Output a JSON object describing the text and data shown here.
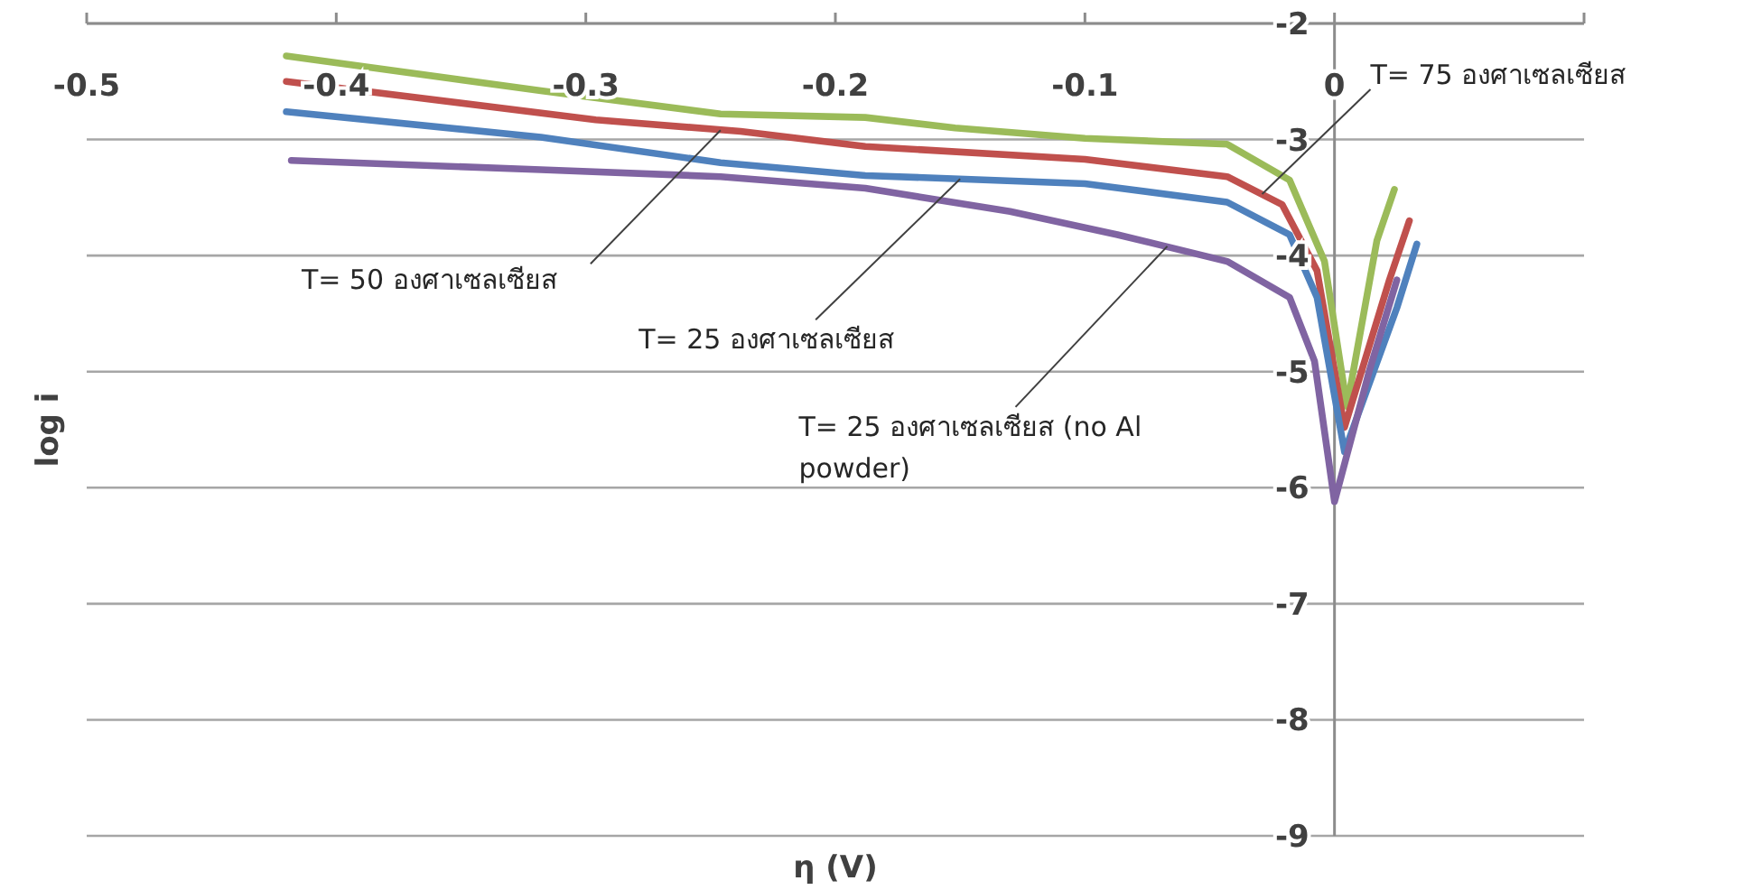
{
  "chart_data": {
    "type": "line",
    "xlabel": "η (V)",
    "ylabel": "log i",
    "xlim": [
      -0.5,
      0.1
    ],
    "xticks": [
      -0.5,
      -0.4,
      -0.3,
      -0.2,
      -0.1,
      0,
      {
        "value": 0.1,
        "label": null
      }
    ],
    "ylim": [
      -9,
      -2
    ],
    "yticks": [
      -9,
      -8,
      -7,
      -6,
      -5,
      -4,
      -3,
      -2
    ],
    "grid": "y",
    "marker": "none",
    "line_style": "solid",
    "series": [
      {
        "color": "#9bbb59",
        "x": [
          -0.42,
          -0.318,
          -0.246,
          -0.188,
          -0.152,
          -0.1,
          -0.043,
          -0.018,
          -0.004,
          0.005,
          0.017,
          0.024
        ],
        "values": [
          -2.28,
          -2.58,
          -2.78,
          -2.81,
          -2.9,
          -2.99,
          -3.04,
          -3.35,
          -4.05,
          -5.3,
          -3.87,
          -3.43
        ]
      },
      {
        "color": "#c0504d",
        "x": [
          -0.42,
          -0.296,
          -0.238,
          -0.188,
          -0.1,
          -0.043,
          -0.021,
          -0.007,
          0.004,
          0.022,
          0.03
        ],
        "values": [
          -2.5,
          -2.83,
          -2.93,
          -3.06,
          -3.17,
          -3.32,
          -3.56,
          -4.13,
          -5.48,
          -4.21,
          -3.7
        ]
      },
      {
        "color": "#4f81bd",
        "x": [
          -0.42,
          -0.318,
          -0.246,
          -0.188,
          -0.1,
          -0.043,
          -0.018,
          -0.007,
          0.004,
          0.025,
          0.033
        ],
        "values": [
          -2.76,
          -2.98,
          -3.2,
          -3.31,
          -3.38,
          -3.54,
          -3.82,
          -4.36,
          -5.69,
          -4.45,
          -3.9
        ]
      },
      {
        "color": "#8064a2",
        "x": [
          -0.418,
          -0.318,
          -0.246,
          -0.188,
          -0.13,
          -0.087,
          -0.043,
          -0.018,
          -0.008,
          0.0,
          0.014,
          0.025
        ],
        "values": [
          -3.18,
          -3.26,
          -3.32,
          -3.42,
          -3.62,
          -3.82,
          -4.05,
          -4.36,
          -4.91,
          -6.12,
          -4.99,
          -4.21
        ]
      }
    ],
    "annotations": [
      {
        "text": "T= 50 องศาเซลเซียส",
        "x": -0.246,
        "y": -2.92
      },
      {
        "text": "T= 25 องศาเซลเซียส",
        "x": -0.15,
        "y": -3.34
      },
      {
        "text": "T= 25 องศาเซลเซียส (no Al powder)",
        "x": -0.067,
        "y": -3.92
      },
      {
        "text": "T= 75 องศาเซลเซียส",
        "x": -0.029,
        "y": -3.47
      }
    ]
  }
}
